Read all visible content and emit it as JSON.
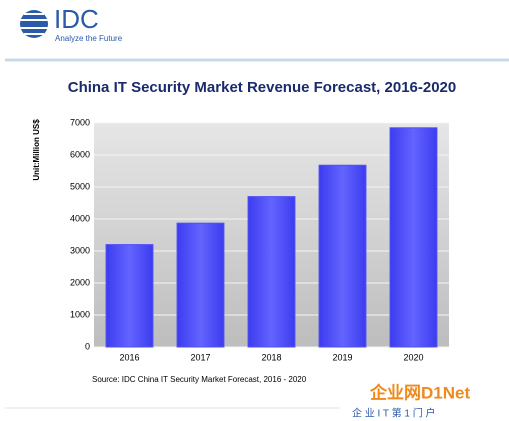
{
  "header": {
    "logo": "IDC",
    "tagline": "Analyze the Future"
  },
  "chart_data": {
    "type": "bar",
    "title": "China IT Security Market Revenue Forecast, 2016-2020",
    "y_label": "Unit:Million US$",
    "categories": [
      "2016",
      "2017",
      "2018",
      "2019",
      "2020"
    ],
    "values": [
      3200,
      3870,
      4700,
      5680,
      6850
    ],
    "color": "#5050f5",
    "ylim": [
      0,
      7000
    ],
    "yticks": [
      0,
      1000,
      2000,
      3000,
      4000,
      5000,
      6000,
      7000
    ],
    "grid": true,
    "source": "Source: IDC China IT Security Market Forecast, 2016 - 2020"
  },
  "watermark": {
    "brand": "企业网D1Net",
    "slogan": "企 业 I T 第 1 门 户"
  }
}
